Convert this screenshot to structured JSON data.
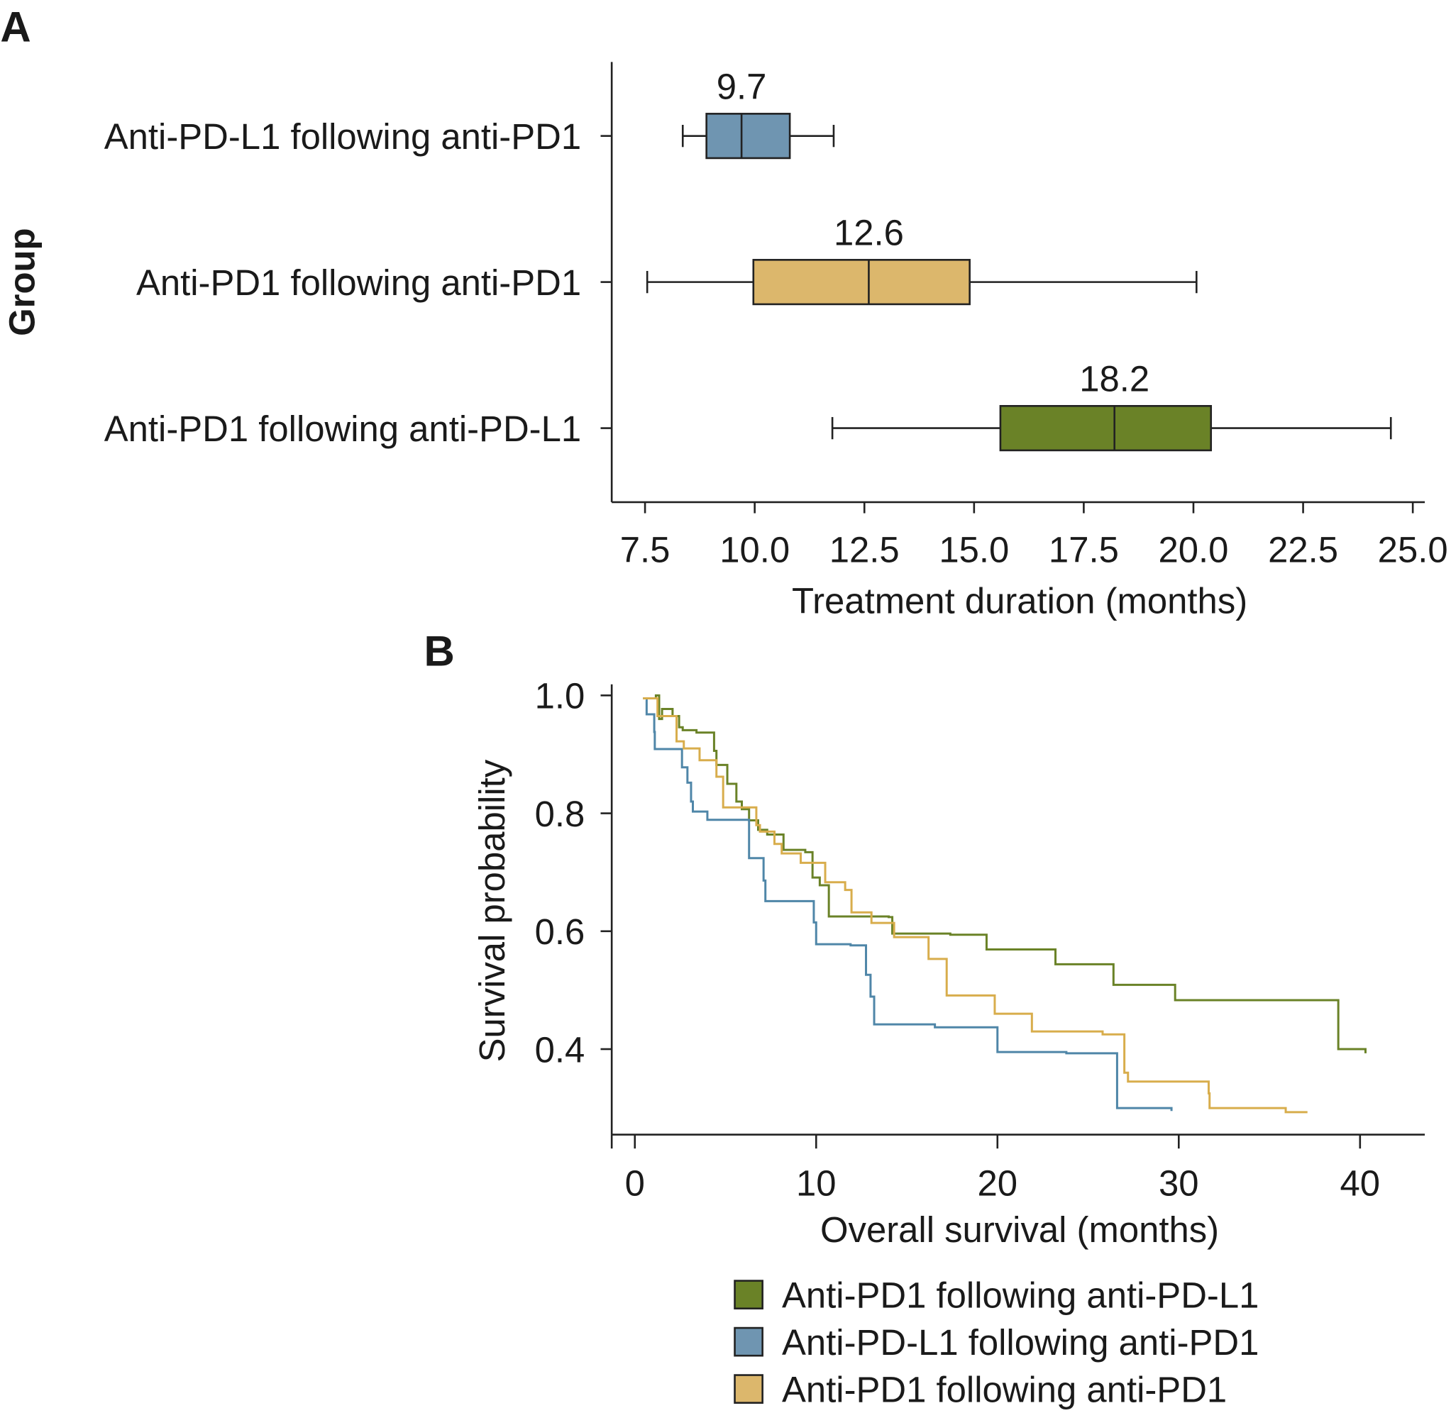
{
  "chart_data": [
    {
      "panel": "A",
      "type": "box",
      "ylabel": "Group",
      "xlabel": "Treatment duration (months)",
      "xlim": [
        7.0,
        25.3
      ],
      "xticks": [
        "7.5",
        "10.0",
        "12.5",
        "15.0",
        "17.5",
        "20.0",
        "22.5",
        "25.0"
      ],
      "xtick_values": [
        7.5,
        10,
        12.5,
        15,
        17.5,
        20,
        22.5,
        25
      ],
      "groups": [
        {
          "name": "Anti-PD-L1 following anti-PD1",
          "color": "#6f95b1",
          "whisker_low": 8.36,
          "q1": 8.9,
          "median": 9.7,
          "q3": 10.8,
          "whisker_high": 11.8,
          "median_label": "9.7"
        },
        {
          "name": "Anti-PD1 following anti-PD1",
          "color": "#dcb76c",
          "whisker_low": 7.55,
          "q1": 9.97,
          "median": 12.6,
          "q3": 14.9,
          "whisker_high": 20.07,
          "median_label": "12.6"
        },
        {
          "name": "Anti-PD1 following anti-PD-L1",
          "color": "#6a8227",
          "whisker_low": 11.77,
          "q1": 15.6,
          "median": 18.2,
          "q3": 20.4,
          "whisker_high": 24.5,
          "median_label": "18.2"
        }
      ]
    },
    {
      "panel": "B",
      "type": "line",
      "subtype": "kaplan-meier",
      "xlabel": "Overall survival (months)",
      "ylabel": "Survival probability",
      "xlim": [
        -1.3,
        43.5
      ],
      "ylim": [
        0.255,
        1.0
      ],
      "xticks": [
        "0",
        "10",
        "20",
        "30",
        "40"
      ],
      "xtick_values": [
        0,
        10,
        20,
        30,
        40
      ],
      "yticks": [
        "1.0",
        "0.8",
        "0.6",
        "0.4"
      ],
      "ytick_values": [
        1.0,
        0.8,
        0.6,
        0.4
      ],
      "legend_position": "bottom",
      "series": [
        {
          "name": "Anti-PD1 following anti-PD-L1",
          "color": "#6a8227",
          "end": 40.3,
          "steps": [
            [
              0.45,
              0.995
            ],
            [
              1.16,
              1.0
            ],
            [
              1.34,
              0.96
            ],
            [
              1.5,
              0.977
            ],
            [
              2.08,
              0.965
            ],
            [
              2.44,
              0.946
            ],
            [
              2.64,
              0.941
            ],
            [
              3.4,
              0.937
            ],
            [
              4.37,
              0.906
            ],
            [
              4.5,
              0.882
            ],
            [
              5.1,
              0.85
            ],
            [
              5.6,
              0.82
            ],
            [
              5.9,
              0.807
            ],
            [
              6.3,
              0.788
            ],
            [
              6.8,
              0.772
            ],
            [
              7.3,
              0.764
            ],
            [
              8.2,
              0.738
            ],
            [
              9.4,
              0.734
            ],
            [
              9.8,
              0.691
            ],
            [
              10.2,
              0.678
            ],
            [
              10.7,
              0.625
            ],
            [
              14.0,
              0.624
            ],
            [
              14.2,
              0.596
            ],
            [
              17.4,
              0.594
            ],
            [
              19.4,
              0.569
            ],
            [
              23.2,
              0.544
            ],
            [
              26.4,
              0.509
            ],
            [
              29.8,
              0.483
            ],
            [
              38.8,
              0.4
            ],
            [
              40.3,
              0.393
            ]
          ]
        },
        {
          "name": "Anti-PD-L1 following anti-PD1",
          "color": "#4f86a8",
          "end": 29.6,
          "steps": [
            [
              0.6,
              0.992
            ],
            [
              0.65,
              0.968
            ],
            [
              1.07,
              0.938
            ],
            [
              1.1,
              0.909
            ],
            [
              2.6,
              0.878
            ],
            [
              2.9,
              0.852
            ],
            [
              3.1,
              0.82
            ],
            [
              3.2,
              0.803
            ],
            [
              4.0,
              0.789
            ],
            [
              6.3,
              0.724
            ],
            [
              7.1,
              0.686
            ],
            [
              7.2,
              0.651
            ],
            [
              9.87,
              0.615
            ],
            [
              10.0,
              0.578
            ],
            [
              11.9,
              0.576
            ],
            [
              12.75,
              0.526
            ],
            [
              13.0,
              0.489
            ],
            [
              13.2,
              0.442
            ],
            [
              16.55,
              0.437
            ],
            [
              20.0,
              0.395
            ],
            [
              23.8,
              0.393
            ],
            [
              26.6,
              0.3
            ],
            [
              29.6,
              0.295
            ]
          ]
        },
        {
          "name": "Anti-PD1 following anti-PD1",
          "color": "#d8ad4c",
          "end": 37.1,
          "steps": [
            [
              0.45,
              0.995
            ],
            [
              1.25,
              0.965
            ],
            [
              2.3,
              0.922
            ],
            [
              2.7,
              0.91
            ],
            [
              3.57,
              0.89
            ],
            [
              4.5,
              0.862
            ],
            [
              4.87,
              0.81
            ],
            [
              6.7,
              0.78
            ],
            [
              6.9,
              0.769
            ],
            [
              7.7,
              0.748
            ],
            [
              8.1,
              0.732
            ],
            [
              9.15,
              0.716
            ],
            [
              10.5,
              0.683
            ],
            [
              11.6,
              0.67
            ],
            [
              11.95,
              0.632
            ],
            [
              13.05,
              0.614
            ],
            [
              14.3,
              0.59
            ],
            [
              16.2,
              0.553
            ],
            [
              17.2,
              0.491
            ],
            [
              19.85,
              0.46
            ],
            [
              21.9,
              0.43
            ],
            [
              25.8,
              0.425
            ],
            [
              27.0,
              0.36
            ],
            [
              27.2,
              0.345
            ],
            [
              31.65,
              0.325
            ],
            [
              31.7,
              0.3
            ],
            [
              35.9,
              0.293
            ]
          ]
        }
      ],
      "legend": [
        {
          "label": "Anti-PD1 following anti-PD-L1",
          "color": "#6a8227"
        },
        {
          "label": "Anti-PD-L1 following anti-PD1",
          "color": "#6f95b1"
        },
        {
          "label": "Anti-PD1 following anti-PD1",
          "color": "#dcb76c"
        }
      ]
    }
  ],
  "panel_labels": {
    "a": "A",
    "b": "B"
  }
}
